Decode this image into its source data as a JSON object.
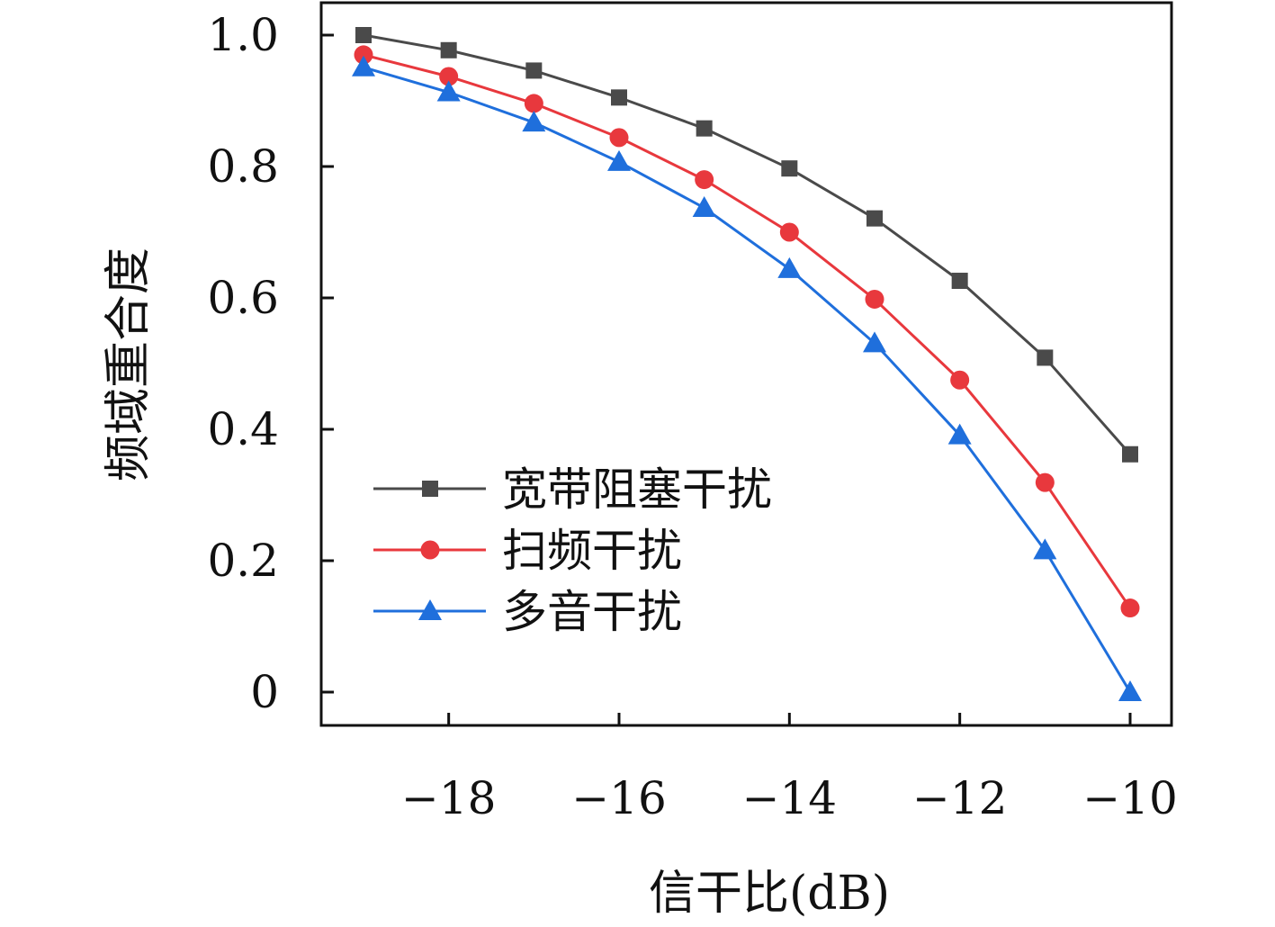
{
  "chart_data": {
    "type": "line",
    "xlabel": "信干比(dB)",
    "ylabel": "频域重合度",
    "xlim": [
      -19.5,
      -9.5
    ],
    "ylim": [
      -0.05,
      1.05
    ],
    "x": [
      -19,
      -18,
      -17,
      -16,
      -15,
      -14,
      -13,
      -12,
      -11,
      -10
    ],
    "x_ticks": [
      -18,
      -16,
      -14,
      -12,
      -10
    ],
    "x_tick_labels": [
      "−18",
      "−16",
      "−14",
      "−12",
      "−10"
    ],
    "y_ticks": [
      0,
      0.2,
      0.4,
      0.6,
      0.8,
      1.0
    ],
    "y_tick_labels": [
      "0",
      "0.2",
      "0.4",
      "0.6",
      "0.8",
      "1.0"
    ],
    "grid": false,
    "legend_position": "lower-left",
    "series": [
      {
        "name": "宽带阻塞干扰",
        "color": "#4a4a4a",
        "marker": "square",
        "values": [
          1.0,
          0.977,
          0.946,
          0.905,
          0.858,
          0.797,
          0.721,
          0.626,
          0.509,
          0.362
        ]
      },
      {
        "name": "扫频干扰",
        "color": "#e8383d",
        "marker": "circle",
        "values": [
          0.97,
          0.937,
          0.896,
          0.844,
          0.78,
          0.7,
          0.598,
          0.475,
          0.319,
          0.128
        ]
      },
      {
        "name": "多音干扰",
        "color": "#1f6fdc",
        "marker": "triangle",
        "values": [
          0.951,
          0.913,
          0.867,
          0.807,
          0.737,
          0.644,
          0.531,
          0.391,
          0.216,
          0.0
        ]
      }
    ]
  }
}
